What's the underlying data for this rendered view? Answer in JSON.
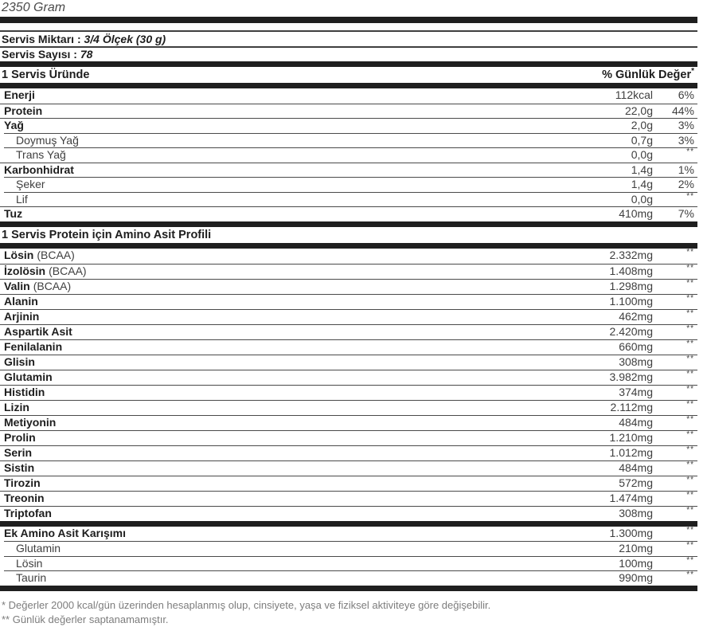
{
  "header": {
    "weight": "2350 Gram",
    "serving_size_label": "Servis Miktarı :",
    "serving_size_value": "3/4 Ölçek (30 g)",
    "servings_label": "Servis Sayısı :",
    "servings_value": "78",
    "per_serving_label": "1 Servis Üründe",
    "daily_value_label": "% Günlük Değer",
    "daily_value_mark": "*"
  },
  "nutrients": [
    {
      "name": "Enerji",
      "amount": "112kcal",
      "dv": "6%"
    },
    {
      "name": "Protein",
      "amount": "22,0g",
      "dv": "44%"
    },
    {
      "name": "Yağ",
      "amount": "2,0g",
      "dv": "3%"
    },
    {
      "name": "Doymuş Yağ",
      "amount": "0,7g",
      "dv": "3%",
      "indent": true
    },
    {
      "name": "Trans Yağ",
      "amount": "0,0g",
      "dv": "**",
      "indent": true
    },
    {
      "name": "Karbonhidrat",
      "amount": "1,4g",
      "dv": "1%"
    },
    {
      "name": "Şeker",
      "amount": "1,4g",
      "dv": "2%",
      "indent": true
    },
    {
      "name": "Lif",
      "amount": "0,0g",
      "dv": "**",
      "indent": true
    },
    {
      "name": "Tuz",
      "amount": "410mg",
      "dv": "7%"
    }
  ],
  "amino_section": {
    "title": "1 Servis Protein için Amino Asit Profili",
    "rows": [
      {
        "name": "Lösin",
        "note": "(BCAA)",
        "amount": "2.332mg",
        "dv": "**"
      },
      {
        "name": "İzolösin",
        "note": "(BCAA)",
        "amount": "1.408mg",
        "dv": "**"
      },
      {
        "name": "Valin",
        "note": "(BCAA)",
        "amount": "1.298mg",
        "dv": "**"
      },
      {
        "name": "Alanin",
        "amount": "1.100mg",
        "dv": "**"
      },
      {
        "name": "Arjinin",
        "amount": "462mg",
        "dv": "**"
      },
      {
        "name": "Aspartik Asit",
        "amount": "2.420mg",
        "dv": "**"
      },
      {
        "name": "Fenilalanin",
        "amount": "660mg",
        "dv": "**"
      },
      {
        "name": "Glisin",
        "amount": "308mg",
        "dv": "**"
      },
      {
        "name": "Glutamin",
        "amount": "3.982mg",
        "dv": "**"
      },
      {
        "name": "Histidin",
        "amount": "374mg",
        "dv": "**"
      },
      {
        "name": "Lizin",
        "amount": "2.112mg",
        "dv": "**"
      },
      {
        "name": "Metiyonin",
        "amount": "484mg",
        "dv": "**"
      },
      {
        "name": "Prolin",
        "amount": "1.210mg",
        "dv": "**"
      },
      {
        "name": "Serin",
        "amount": "1.012mg",
        "dv": "**"
      },
      {
        "name": "Sistin",
        "amount": "484mg",
        "dv": "**"
      },
      {
        "name": "Tirozin",
        "amount": "572mg",
        "dv": "**"
      },
      {
        "name": "Treonin",
        "amount": "1.474mg",
        "dv": "**"
      },
      {
        "name": "Triptofan",
        "amount": "308mg",
        "dv": "**"
      }
    ]
  },
  "extra_section": {
    "rows": [
      {
        "name": "Ek Amino Asit Karışımı",
        "amount": "1.300mg",
        "dv": "**"
      },
      {
        "name": "Glutamin",
        "amount": "210mg",
        "dv": "**",
        "indent": true
      },
      {
        "name": "Lösin",
        "amount": "100mg",
        "dv": "**",
        "indent": true
      },
      {
        "name": "Taurin",
        "amount": "990mg",
        "dv": "**",
        "indent": true
      }
    ]
  },
  "footnotes": {
    "line1": "* Değerler 2000 kcal/gün üzerinden hesaplanmış olup, cinsiyete, yaşa ve fiziksel aktiviteye göre değişebilir.",
    "line2": "** Günlük değerler saptanamamıştır."
  },
  "colors": {
    "bar": "#1f1f1f",
    "rule": "#4a4a4a",
    "label_text": "#1d1d1d",
    "value_text": "#3f3f3f",
    "footnote_text": "#7d7d7d"
  }
}
